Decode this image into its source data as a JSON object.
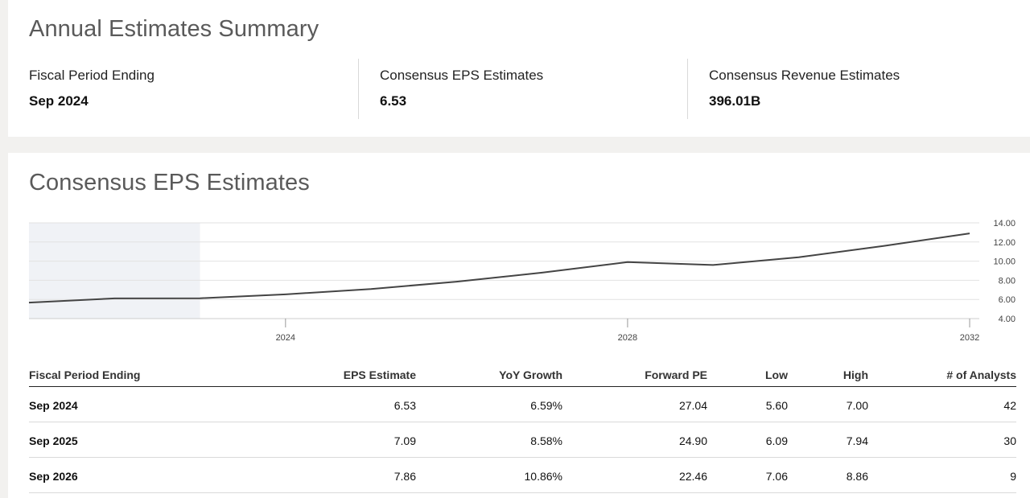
{
  "summary": {
    "title": "Annual Estimates Summary",
    "stats": [
      {
        "label": "Fiscal Period Ending",
        "value": "Sep 2024"
      },
      {
        "label": "Consensus EPS Estimates",
        "value": "6.53"
      },
      {
        "label": "Consensus Revenue Estimates",
        "value": "396.01B"
      }
    ]
  },
  "eps": {
    "title": "Consensus EPS Estimates"
  },
  "chart_data": {
    "type": "line",
    "x": [
      2021,
      2022,
      2023,
      2024,
      2025,
      2026,
      2027,
      2028,
      2029,
      2030,
      2031,
      2032
    ],
    "series": [
      {
        "values": [
          5.67,
          6.11,
          6.13,
          6.53,
          7.09,
          7.86,
          8.8,
          9.9,
          9.6,
          10.4,
          11.6,
          12.9
        ]
      }
    ],
    "x_ticks": [
      "2024",
      "2028",
      "2032"
    ],
    "y_ticks": [
      "14.00",
      "12.00",
      "10.00",
      "8.00",
      "6.00",
      "4.00"
    ],
    "ylim": [
      4,
      14
    ],
    "shaded_region_through": 2023,
    "grid": true,
    "y_axis_position": "right",
    "line_color": "#444444",
    "shade_color": "#f0f2f6"
  },
  "table": {
    "headers": {
      "period": "Fiscal Period Ending",
      "eps": "EPS Estimate",
      "yoy": "YoY Growth",
      "fpe": "Forward PE",
      "low": "Low",
      "high": "High",
      "analysts": "# of Analysts"
    },
    "rows": [
      {
        "period": "Sep 2024",
        "eps": "6.53",
        "yoy": "6.59%",
        "fpe": "27.04",
        "low": "5.60",
        "high": "7.00",
        "analysts": "42"
      },
      {
        "period": "Sep 2025",
        "eps": "7.09",
        "yoy": "8.58%",
        "fpe": "24.90",
        "low": "6.09",
        "high": "7.94",
        "analysts": "30"
      },
      {
        "period": "Sep 2026",
        "eps": "7.86",
        "yoy": "10.86%",
        "fpe": "22.46",
        "low": "7.06",
        "high": "8.86",
        "analysts": "9"
      }
    ]
  }
}
